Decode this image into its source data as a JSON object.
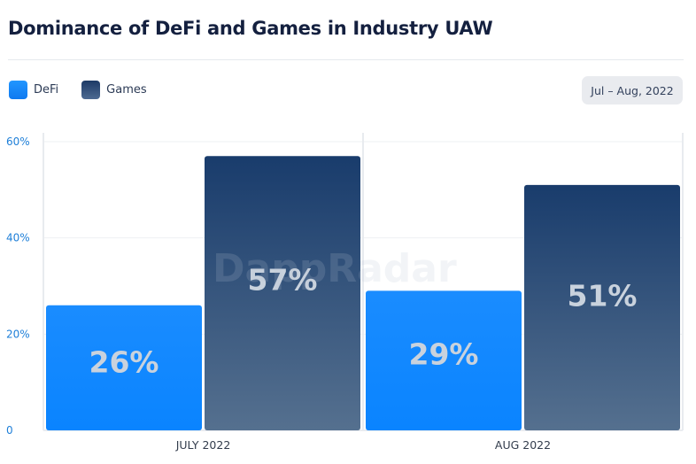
{
  "header": {
    "title": "Dominance of DeFi and Games in Industry UAW",
    "date_range": "Jul – Aug, 2022"
  },
  "legend": [
    {
      "name": "DeFi",
      "color": "#1a8cff"
    },
    {
      "name": "Games",
      "color": "#1f3f6e"
    }
  ],
  "watermark": "DappRadar",
  "chart_data": {
    "type": "bar",
    "title": "Dominance of DeFi and Games in Industry UAW",
    "xlabel": "",
    "ylabel": "",
    "categories": [
      "JULY 2022",
      "AUG 2022"
    ],
    "series": [
      {
        "name": "DeFi",
        "values": [
          26,
          29
        ],
        "labels": [
          "26%",
          "29%"
        ],
        "color": "#1a8cff"
      },
      {
        "name": "Games",
        "values": [
          57,
          51
        ],
        "labels": [
          "57%",
          "51%"
        ],
        "color": "#1f3f6e"
      }
    ],
    "ylim": [
      0,
      60
    ],
    "yticks": [
      0,
      20,
      40,
      60
    ],
    "ytick_labels": [
      "0",
      "20%",
      "40%",
      "60%"
    ],
    "grid": true,
    "legend_position": "top-left"
  }
}
